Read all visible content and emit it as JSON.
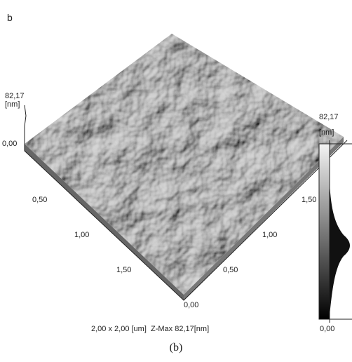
{
  "panel_label": "b",
  "surface": {
    "z_axis": {
      "max": "82,17",
      "unit": "[nm]",
      "min": "0,00"
    },
    "x_axis_ticks": [
      "0,50",
      "1,00",
      "1,50"
    ],
    "y_axis_ticks": [
      "0,00",
      "0,50",
      "1,00",
      "1,50"
    ]
  },
  "scan_info": "2,00 x 2,00 [um]  Z-Max 82,17[nm]",
  "color_bar": {
    "max": "82,17",
    "unit": "[nm]",
    "min": "0,00"
  },
  "caption": "(b)"
}
